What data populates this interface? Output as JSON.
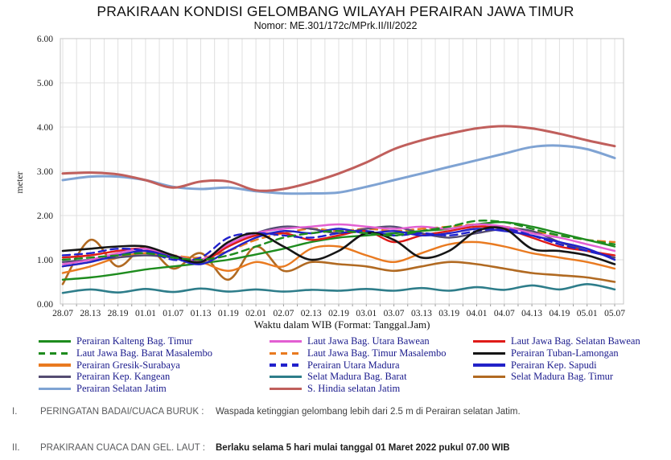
{
  "header": {
    "title": "PRAKIRAAN KONDISI GELOMBANG WILAYAH PERAIRAN JAWA TIMUR",
    "subtitle": "Nomor: ME.301/172c/MPrk.II/II/2022"
  },
  "chart_data": {
    "type": "line",
    "title": "PRAKIRAAN KONDISI GELOMBANG WILAYAH PERAIRAN JAWA TIMUR",
    "xlabel": "Waktu dalam WIB (Format: Tanggal.Jam)",
    "ylabel": "meter",
    "ylim": [
      0,
      6
    ],
    "ytick_step": 1,
    "ytick_format": "0.00",
    "grid": true,
    "legend_position": "bottom",
    "legend_columns": [
      5,
      5,
      4
    ],
    "x_labels": [
      "28.07",
      "28.13",
      "28.19",
      "01.01",
      "01.07",
      "01.13",
      "01.19",
      "02.01",
      "02.07",
      "02.13",
      "02.19",
      "03.01",
      "03.07",
      "03.13",
      "03.19",
      "04.01",
      "04.07",
      "04.13",
      "04.19",
      "05.01",
      "05.07"
    ],
    "series": [
      {
        "name": "Perairan Kalteng Bag. Timur",
        "color": "#1e8c1e",
        "dash": "solid",
        "width": 2.4,
        "z": 6,
        "values": [
          0.55,
          0.6,
          0.68,
          0.78,
          0.85,
          0.92,
          1.0,
          1.12,
          1.25,
          1.4,
          1.5,
          1.55,
          1.6,
          1.65,
          1.7,
          1.8,
          1.85,
          1.75,
          1.6,
          1.45,
          1.3
        ]
      },
      {
        "name": "Laut Jawa Bag. Barat Masalembo",
        "color": "#1e8c1e",
        "dash": "dashed",
        "width": 2.4,
        "z": 12,
        "values": [
          1.0,
          1.05,
          1.1,
          1.15,
          1.05,
          1.0,
          1.1,
          1.3,
          1.5,
          1.6,
          1.65,
          1.6,
          1.55,
          1.65,
          1.75,
          1.88,
          1.85,
          1.7,
          1.55,
          1.45,
          1.35
        ]
      },
      {
        "name": "Perairan Gresik-Surabaya",
        "color": "#e97a20",
        "dash": "solid",
        "width": 2.4,
        "z": 3,
        "values": [
          0.7,
          0.85,
          1.05,
          1.15,
          1.05,
          0.95,
          0.75,
          0.95,
          0.85,
          1.25,
          1.3,
          1.1,
          0.95,
          1.15,
          1.35,
          1.4,
          1.3,
          1.15,
          1.05,
          0.95,
          0.8
        ]
      },
      {
        "name": "Perairan Kep. Kangean",
        "color": "#544c72",
        "dash": "solid",
        "width": 2.4,
        "z": 5,
        "values": [
          0.95,
          1.0,
          1.05,
          1.1,
          1.05,
          0.95,
          1.3,
          1.6,
          1.75,
          1.7,
          1.6,
          1.7,
          1.75,
          1.6,
          1.5,
          1.6,
          1.7,
          1.65,
          1.4,
          1.2,
          1.05
        ]
      },
      {
        "name": "Perairan Selatan Jatim",
        "color": "#7fa3d3",
        "dash": "solid",
        "width": 3,
        "z": 13,
        "values": [
          2.8,
          2.88,
          2.88,
          2.8,
          2.65,
          2.6,
          2.63,
          2.55,
          2.5,
          2.5,
          2.52,
          2.65,
          2.8,
          2.95,
          3.1,
          3.25,
          3.4,
          3.55,
          3.58,
          3.5,
          3.3
        ]
      },
      {
        "name": "Laut Jawa Bag. Utara Bawean",
        "color": "#e25fd2",
        "dash": "solid",
        "width": 2.4,
        "z": 8,
        "values": [
          0.9,
          1.0,
          1.15,
          1.25,
          1.1,
          1.0,
          1.35,
          1.6,
          1.7,
          1.75,
          1.8,
          1.75,
          1.7,
          1.75,
          1.7,
          1.8,
          1.75,
          1.6,
          1.5,
          1.35,
          1.2
        ]
      },
      {
        "name": "Laut Jawa Bag. Timur Masalembo",
        "color": "#e97a20",
        "dash": "dashed",
        "width": 2.4,
        "z": 4,
        "values": [
          0.85,
          0.95,
          1.1,
          1.2,
          1.1,
          1.05,
          1.2,
          1.45,
          1.6,
          1.7,
          1.65,
          1.7,
          1.65,
          1.7,
          1.75,
          1.8,
          1.75,
          1.65,
          1.55,
          1.45,
          1.4
        ]
      },
      {
        "name": "Perairan Utara Madura",
        "color": "#2121cc",
        "dash": "dashed",
        "width": 2.4,
        "z": 10,
        "values": [
          1.1,
          1.15,
          1.25,
          1.2,
          1.0,
          1.05,
          1.5,
          1.6,
          1.55,
          1.5,
          1.6,
          1.65,
          1.55,
          1.6,
          1.55,
          1.65,
          1.7,
          1.55,
          1.35,
          1.2,
          1.05
        ]
      },
      {
        "name": "Selat Madura Bag. Barat",
        "color": "#2e7d8a",
        "dash": "solid",
        "width": 2.6,
        "z": 1,
        "values": [
          0.25,
          0.33,
          0.26,
          0.34,
          0.27,
          0.35,
          0.28,
          0.33,
          0.28,
          0.32,
          0.3,
          0.34,
          0.3,
          0.36,
          0.3,
          0.38,
          0.32,
          0.42,
          0.33,
          0.45,
          0.33
        ]
      },
      {
        "name": "S. Hindia selatan Jatim",
        "color": "#c05f5c",
        "dash": "solid",
        "width": 3,
        "z": 14,
        "values": [
          2.95,
          2.97,
          2.93,
          2.8,
          2.63,
          2.77,
          2.77,
          2.57,
          2.6,
          2.75,
          2.95,
          3.2,
          3.5,
          3.7,
          3.85,
          3.97,
          4.02,
          3.97,
          3.85,
          3.7,
          3.57
        ]
      },
      {
        "name": "Laut Jawa Bag. Selatan Bawean",
        "color": "#df1b18",
        "dash": "solid",
        "width": 2.4,
        "z": 7,
        "values": [
          1.05,
          1.1,
          1.2,
          1.25,
          1.05,
          0.95,
          1.3,
          1.55,
          1.6,
          1.45,
          1.55,
          1.65,
          1.4,
          1.55,
          1.65,
          1.75,
          1.7,
          1.5,
          1.3,
          1.2,
          1.1
        ]
      },
      {
        "name": "Perairan Tuban-Lamongan",
        "color": "#151515",
        "dash": "solid",
        "width": 2.6,
        "z": 11,
        "values": [
          1.2,
          1.25,
          1.3,
          1.3,
          1.1,
          0.95,
          1.4,
          1.6,
          1.3,
          1.0,
          1.2,
          1.6,
          1.45,
          1.05,
          1.2,
          1.65,
          1.7,
          1.25,
          1.2,
          1.1,
          0.9
        ]
      },
      {
        "name": "Perairan Kep. Sapudi",
        "color": "#2222c8",
        "dash": "solid",
        "width": 2.4,
        "z": 9,
        "values": [
          0.85,
          0.95,
          1.1,
          1.2,
          1.05,
          0.9,
          1.2,
          1.5,
          1.65,
          1.6,
          1.7,
          1.6,
          1.65,
          1.55,
          1.6,
          1.7,
          1.65,
          1.55,
          1.4,
          1.25,
          1.0
        ]
      },
      {
        "name": "Selat Madura Bag. Timur",
        "color": "#b16a22",
        "dash": "solid",
        "width": 2.6,
        "z": 2,
        "values": [
          0.45,
          1.45,
          0.85,
          1.3,
          0.8,
          1.15,
          0.55,
          1.3,
          0.75,
          0.95,
          0.9,
          0.85,
          0.75,
          0.85,
          0.95,
          0.9,
          0.8,
          0.7,
          0.65,
          0.6,
          0.5
        ]
      }
    ]
  },
  "notes": [
    {
      "numeral": "I.",
      "label": "PERINGATAN BADAI/CUACA BURUK :",
      "text": "Waspada ketinggian gelombang lebih dari 2.5 m di Perairan selatan Jatim.",
      "bold": false
    },
    {
      "numeral": "II.",
      "label": "PRAKIRAAN CUACA DAN GEL. LAUT :",
      "text": "Berlaku selama 5 hari mulai tanggal 01 Maret 2022 pukul 07.00 WIB",
      "bold": true
    }
  ],
  "colors": {
    "gridline": "#e0e0e0",
    "plot_border": "#c4c4c4",
    "axis_text": "#222222",
    "legend_text": "#1a1a8c"
  }
}
